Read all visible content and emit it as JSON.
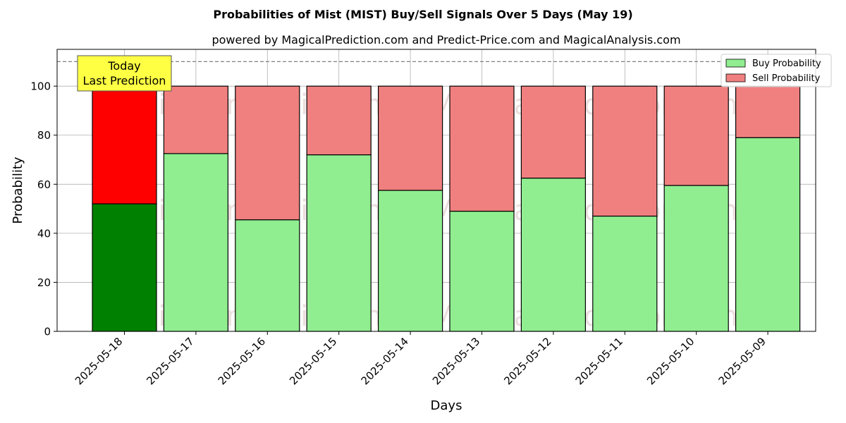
{
  "chart_data": {
    "type": "bar",
    "stacked": true,
    "title": "Probabilities of Mist (MIST) Buy/Sell Signals Over 5 Days (May 19)",
    "subtitle": "powered by MagicalPrediction.com and Predict-Price.com and MagicalAnalysis.com",
    "xlabel": "Days",
    "ylabel": "Probability",
    "ylim": [
      0,
      115
    ],
    "yticks": [
      0,
      20,
      40,
      60,
      80,
      100
    ],
    "grid": true,
    "legend_position": "top-right",
    "reference_line": {
      "y": 110,
      "style": "dashed"
    },
    "categories": [
      "2025-05-18",
      "2025-05-17",
      "2025-05-16",
      "2025-05-15",
      "2025-05-14",
      "2025-05-13",
      "2025-05-12",
      "2025-05-11",
      "2025-05-10",
      "2025-05-09"
    ],
    "series": [
      {
        "name": "Buy Probability",
        "color": "#90ee90",
        "highlight_color": "#008000",
        "values": [
          52,
          72.5,
          45.5,
          72,
          57.5,
          49,
          62.5,
          47,
          59.5,
          79
        ]
      },
      {
        "name": "Sell Probability",
        "color": "#f08080",
        "highlight_color": "#ff0000",
        "values": [
          48,
          27.5,
          54.5,
          28,
          42.5,
          51,
          37.5,
          53,
          40.5,
          21
        ]
      }
    ],
    "annotation": {
      "lines": [
        "Today",
        "Last Prediction"
      ],
      "category": "2025-05-18",
      "background": "#ffff44"
    },
    "watermarks": [
      "MagicalAnalysis.com",
      "MagicalPrediction.com"
    ]
  }
}
